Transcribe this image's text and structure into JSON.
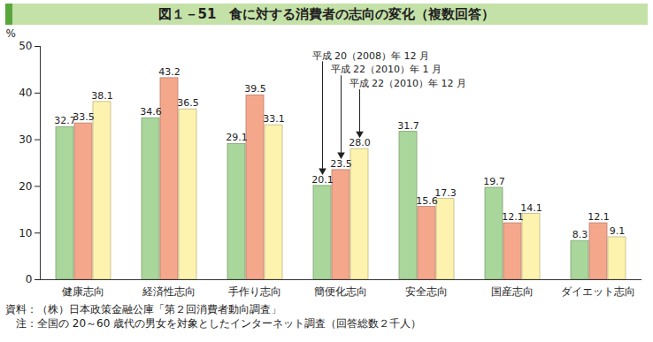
{
  "chart_data": {
    "type": "bar",
    "title": "図１－51　食に対する消費者の志向の変化（複数回答）",
    "y_label": "%",
    "categories": [
      "健康志向",
      "経済性志向",
      "手作り志向",
      "簡便化志向",
      "安全志向",
      "国産志向",
      "ダイエット志向"
    ],
    "series": [
      {
        "name": "平成 20（2008）年 12 月",
        "color": "#a9d69a",
        "values": [
          32.7,
          34.6,
          29.1,
          20.1,
          31.7,
          19.7,
          8.3
        ],
        "value_labels": [
          "32.7",
          "34.6",
          "29.1",
          "20.1",
          "31.7",
          "19.7",
          "8.3"
        ]
      },
      {
        "name": "平成 22（2010）年 1 月",
        "color": "#f5a78c",
        "values": [
          33.5,
          43.2,
          39.5,
          23.5,
          15.6,
          12.1,
          12.1
        ],
        "value_labels": [
          "33.5",
          "43.2",
          "39.5",
          "23.5",
          "15.6",
          "12.1",
          "12.1"
        ]
      },
      {
        "name": "平成 22（2010）年 12 月",
        "color": "#fdf3ae",
        "values": [
          38.1,
          36.5,
          33.1,
          28.0,
          17.3,
          14.1,
          9.1
        ],
        "value_labels": [
          "38.1",
          "36.5",
          "33.1",
          "28.0",
          "17.3",
          "14.1",
          "9.1"
        ]
      }
    ],
    "ylim": [
      0,
      50
    ],
    "yticks": [
      0,
      10,
      20,
      30,
      40,
      50
    ],
    "grid": false,
    "data_labels": true,
    "notes": [
      "資料：（株）日本政策金融公庫「第２回消費者動向調査」",
      "　注：全国の 20～60 歳代の男女を対象としたインターネット調査（回答総数２千人）"
    ]
  }
}
